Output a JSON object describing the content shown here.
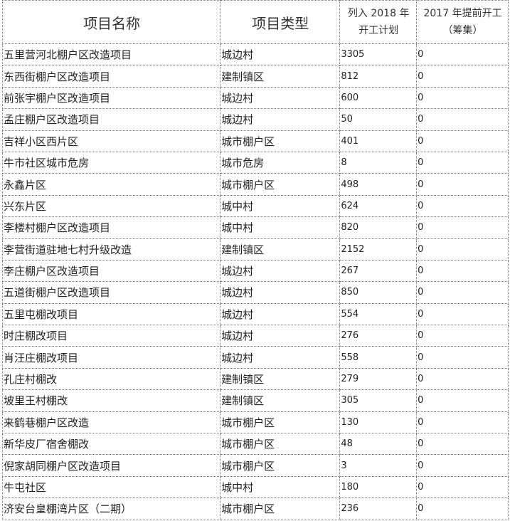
{
  "headers": {
    "name": "项目名称",
    "type": "项目类型",
    "plan_2018_line1": "列入 2018 年",
    "plan_2018_line2": "开工计划",
    "early_2017_line1": "2017 年提前开工",
    "early_2017_line2": "（筹集）"
  },
  "rows": [
    {
      "name": "五里营河北棚户区改造项目",
      "type": "城边村",
      "plan": "3305",
      "early": "0"
    },
    {
      "name": "东西街棚户区改造项目",
      "type": "建制镇区",
      "plan": "812",
      "early": "0"
    },
    {
      "name": "前张宇棚户区改造项目",
      "type": "城边村",
      "plan": "600",
      "early": "0"
    },
    {
      "name": "孟庄棚户区改造项目",
      "type": "城边村",
      "plan": "50",
      "early": "0"
    },
    {
      "name": "吉祥小区西片区",
      "type": "城市棚户区",
      "plan": "401",
      "early": "0"
    },
    {
      "name": "牛市社区城市危房",
      "type": "城市危房",
      "plan": "8",
      "early": "0"
    },
    {
      "name": "永鑫片区",
      "type": "城市棚户区",
      "plan": "498",
      "early": "0"
    },
    {
      "name": "兴东片区",
      "type": "城中村",
      "plan": "624",
      "early": "0"
    },
    {
      "name": "李楼村棚户区改造项目",
      "type": "城中村",
      "plan": "820",
      "early": "0"
    },
    {
      "name": "李营街道驻地七村升级改造",
      "type": "建制镇区",
      "plan": "2152",
      "early": "0"
    },
    {
      "name": "李庄棚户区改造项目",
      "type": "城边村",
      "plan": "267",
      "early": "0"
    },
    {
      "name": "五道街棚户区改造项目",
      "type": "城边村",
      "plan": "850",
      "early": "0"
    },
    {
      "name": "五里屯棚改项目",
      "type": "城边村",
      "plan": "554",
      "early": "0"
    },
    {
      "name": "时庄棚改项目",
      "type": "城边村",
      "plan": "276",
      "early": "0"
    },
    {
      "name": "肖汪庄棚改项目",
      "type": "城边村",
      "plan": "558",
      "early": "0"
    },
    {
      "name": "孔庄村棚改",
      "type": "建制镇区",
      "plan": "279",
      "early": "0"
    },
    {
      "name": "坡里王村棚改",
      "type": "建制镇区",
      "plan": "305",
      "early": "0"
    },
    {
      "name": "来鹤巷棚户区改造",
      "type": "城市棚户区",
      "plan": "130",
      "early": "0"
    },
    {
      "name": "新华皮厂宿舍棚改",
      "type": "城市棚户区",
      "plan": "48",
      "early": "0"
    },
    {
      "name": "倪家胡同棚户区改造项目",
      "type": "城市棚户区",
      "plan": "3",
      "early": "0"
    },
    {
      "name": "牛屯社区",
      "type": "城中村",
      "plan": "180",
      "early": "0"
    },
    {
      "name": "济安台皇棚湾片区（二期）",
      "type": "城市棚户区",
      "plan": "236",
      "early": "0"
    }
  ]
}
